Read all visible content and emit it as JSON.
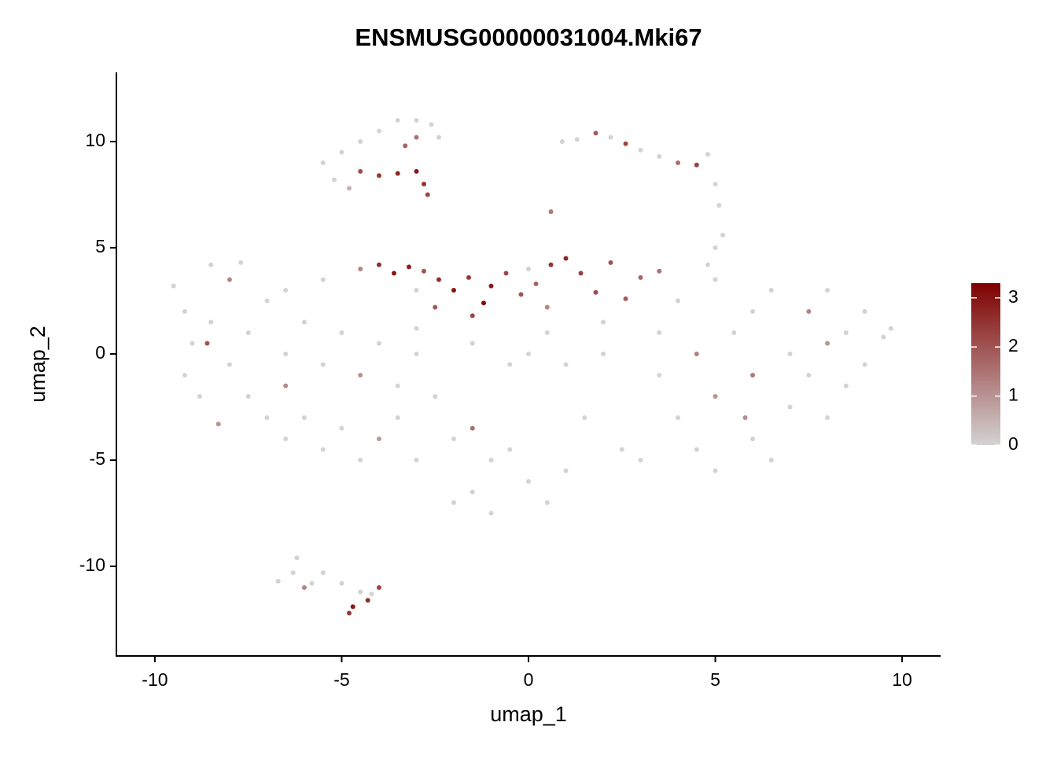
{
  "chart_data": {
    "type": "scatter",
    "title": "ENSMUSG00000031004.Mki67",
    "x_label": "umap_1",
    "y_label": "umap_2",
    "xlim": [
      -11.03,
      11.03
    ],
    "xticks": [
      -10,
      -5,
      0,
      5,
      10
    ],
    "ylim": [
      -14.22,
      13.26
    ],
    "yticks": [
      -10,
      -5,
      0,
      5,
      10
    ],
    "colors": [
      "#d3d3d3",
      "#7f0000"
    ],
    "colorbar_lim": [
      0,
      3.3
    ],
    "colorbar_ticks": [
      0,
      1,
      2,
      3
    ],
    "x": [
      -5.5,
      -5.0,
      -4.5,
      -4.0,
      -3.5,
      -3.0,
      -2.6,
      -2.4,
      -5.2,
      -4.8,
      -4.5,
      -4.0,
      -3.5,
      -3.0,
      -2.8,
      -2.7,
      -3.3,
      -3.0,
      1.3,
      1.8,
      2.2,
      2.6,
      3.0,
      3.5,
      4.0,
      4.5,
      4.8,
      5.0,
      5.1,
      0.6,
      0.9,
      -4.5,
      -4.0,
      -3.6,
      -3.2,
      -2.8,
      -2.4,
      -2.0,
      -1.6,
      -1.2,
      -1.0,
      -0.6,
      -0.2,
      0.2,
      0.6,
      1.0,
      1.4,
      1.8,
      2.2,
      2.6,
      3.0,
      3.5,
      -1.5,
      -2.5,
      0.5,
      -3.0,
      0.0,
      -9.5,
      -9.2,
      -9.0,
      -9.2,
      -8.8,
      -8.5,
      -8.0,
      -8.5,
      -8.6,
      -8.0,
      -7.5,
      -7.0,
      -7.5,
      -6.5,
      -6.0,
      -6.5,
      -5.5,
      -5.0,
      -4.5,
      -4.0,
      -3.5,
      -3.0,
      -7.0,
      -6.5,
      -6.0,
      -5.5,
      -5.0,
      -4.5,
      -4.0,
      -3.5,
      -3.0,
      -8.3,
      -6.5,
      -5.5,
      -7.7,
      -2.5,
      -2.0,
      -1.5,
      -1.0,
      -0.5,
      0.0,
      -1.5,
      -2.0,
      -1.0,
      0.5,
      -0.5,
      0.0,
      1.0,
      2.0,
      -1.5,
      0.5,
      1.5,
      2.5,
      3.0,
      1.0,
      -3.0,
      2.0,
      3.5,
      3.5,
      4.0,
      4.5,
      4.0,
      4.5,
      5.0,
      5.0,
      5.0,
      5.0,
      5.2,
      4.8,
      5.5,
      6.0,
      6.0,
      6.0,
      6.5,
      6.5,
      7.0,
      7.0,
      7.5,
      7.5,
      8.0,
      8.0,
      8.5,
      8.5,
      9.0,
      9.0,
      9.5,
      9.7,
      5.8,
      8.0,
      -6.7,
      -6.3,
      -6.2,
      -5.8,
      -5.5,
      -5.0,
      -4.5,
      -4.0,
      -4.3,
      -4.7,
      -4.8,
      -6.0,
      -4.2
    ],
    "y": [
      9.0,
      9.5,
      10.0,
      10.5,
      11.0,
      11.0,
      10.8,
      10.2,
      8.2,
      7.8,
      8.6,
      8.4,
      8.5,
      8.6,
      8.0,
      7.5,
      9.8,
      10.2,
      10.1,
      10.4,
      10.2,
      9.9,
      9.6,
      9.3,
      9.0,
      8.9,
      9.4,
      8.0,
      7.0,
      6.7,
      10.0,
      4.0,
      4.2,
      3.8,
      4.1,
      3.9,
      3.5,
      3.0,
      3.6,
      2.4,
      3.2,
      3.8,
      2.8,
      3.3,
      4.2,
      4.5,
      3.8,
      2.9,
      4.3,
      2.6,
      3.6,
      3.9,
      1.8,
      2.2,
      2.2,
      3.0,
      4.0,
      3.2,
      2.0,
      0.5,
      -1.0,
      -2.0,
      4.2,
      3.5,
      1.5,
      0.5,
      -0.5,
      1.0,
      2.5,
      -2.0,
      0.0,
      1.5,
      -1.5,
      -0.5,
      1.0,
      -1.0,
      0.5,
      -1.5,
      0.0,
      -3.0,
      -4.0,
      -3.0,
      -4.5,
      -3.5,
      -5.0,
      -4.0,
      -3.0,
      -5.0,
      -3.3,
      3.0,
      3.5,
      4.3,
      -2.0,
      -4.0,
      -3.5,
      -5.0,
      -4.5,
      -6.0,
      -6.5,
      -7.0,
      -7.5,
      -7.0,
      -0.5,
      0.0,
      -0.5,
      0.0,
      0.5,
      1.0,
      -3.0,
      -4.5,
      -5.0,
      -5.5,
      1.2,
      1.5,
      -1.0,
      1.0,
      2.5,
      0.0,
      -3.0,
      -4.5,
      -5.5,
      -2.0,
      3.5,
      5.0,
      5.6,
      4.2,
      1.0,
      -1.0,
      2.0,
      -4.0,
      -5.0,
      3.0,
      0.0,
      -2.5,
      2.0,
      -1.0,
      3.0,
      -3.0,
      1.0,
      -1.5,
      2.0,
      -0.5,
      0.8,
      1.2,
      -3.0,
      0.5,
      -10.7,
      -10.3,
      -9.6,
      -10.8,
      -10.3,
      -10.8,
      -11.2,
      -11.0,
      -11.6,
      -11.9,
      -12.2,
      -11.0,
      -11.3
    ],
    "values": [
      0,
      0,
      0,
      0,
      0,
      0,
      0,
      0,
      0,
      0.5,
      2.1,
      2.4,
      2.7,
      2.9,
      2.5,
      2.2,
      1.8,
      1.5,
      0,
      1.9,
      0,
      2.2,
      0,
      0,
      1.6,
      2.3,
      0,
      0,
      0,
      1.4,
      0,
      1.2,
      2.6,
      3.0,
      2.8,
      2.0,
      2.6,
      3.0,
      2.4,
      3.2,
      2.9,
      2.2,
      2.0,
      1.8,
      2.5,
      2.7,
      2.3,
      2.1,
      2.0,
      1.9,
      1.7,
      1.5,
      2.2,
      1.9,
      1.2,
      0,
      0,
      0,
      0,
      0,
      0,
      0,
      0,
      1.2,
      0,
      2.0,
      0,
      0,
      0,
      0,
      0,
      0,
      1.1,
      0,
      0,
      1.0,
      0,
      0,
      0,
      0,
      0,
      0,
      0,
      0,
      0,
      0.9,
      0,
      0,
      1.0,
      0,
      0,
      0,
      0,
      0,
      1.6,
      0,
      0,
      0,
      0,
      0,
      0,
      0,
      0,
      0,
      0,
      0,
      0,
      0,
      0,
      0,
      0,
      0,
      0,
      0,
      0,
      0,
      0,
      1.3,
      0,
      0,
      0,
      1.0,
      0,
      0,
      0,
      0,
      0,
      1.4,
      0,
      0,
      0,
      0,
      0,
      0,
      1.2,
      0,
      0,
      0,
      0,
      0,
      0,
      0,
      0,
      0,
      1.1,
      1.0,
      0,
      0,
      0,
      0,
      0,
      0,
      0,
      2.2,
      2.6,
      2.9,
      2.4,
      1.2,
      0
    ]
  }
}
